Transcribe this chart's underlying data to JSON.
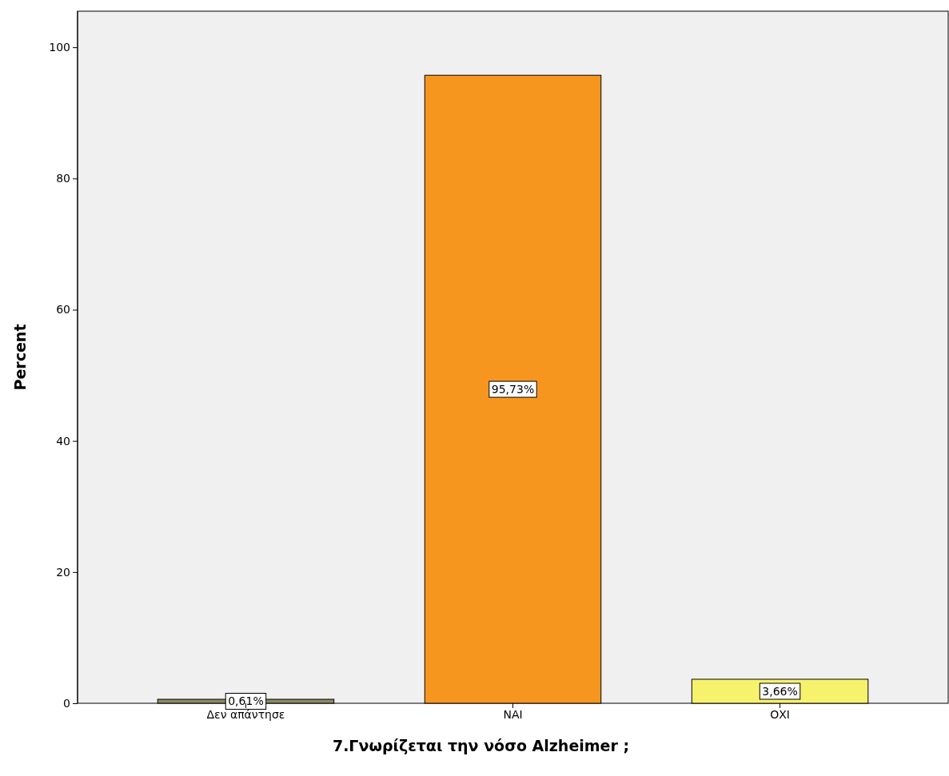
{
  "chart_data": {
    "type": "bar",
    "xlabel": "7.Γνωρίζεται την νόσο Alzheimer ;",
    "ylabel": "Percent",
    "categories": [
      "Δεν απάντησε",
      "ΝΑΙ",
      "ΟΧΙ"
    ],
    "values": [
      0.61,
      95.73,
      3.66
    ],
    "colors": [
      "#8c8a63",
      "#f7961e",
      "#f7f26c"
    ],
    "value_labels": [
      "0,61%",
      "95,73%",
      "3,66%"
    ],
    "ylim": [
      0,
      105.5
    ],
    "yticks": [
      0,
      20,
      40,
      60,
      80,
      100
    ],
    "grid": false
  }
}
